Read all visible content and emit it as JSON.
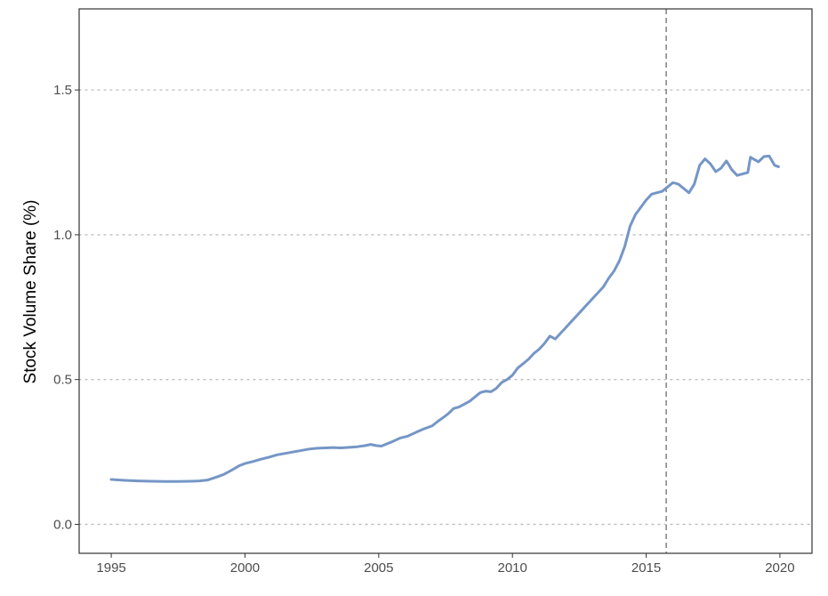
{
  "chart_data": {
    "type": "line",
    "title": "",
    "xlabel": "",
    "ylabel": "Stock Volume Share (%)",
    "xlim": [
      1993.8,
      2021.2
    ],
    "ylim": [
      -0.1,
      1.78
    ],
    "x_ticks": [
      1995,
      2000,
      2005,
      2010,
      2015,
      2020
    ],
    "x_tick_labels": [
      "1995",
      "2000",
      "2005",
      "2010",
      "2015",
      "2020"
    ],
    "y_ticks": [
      0.0,
      0.5,
      1.0,
      1.5
    ],
    "y_tick_labels": [
      "0.0",
      "0.5",
      "1.0",
      "1.5"
    ],
    "grid": "horizontal-dotted",
    "legend": "none",
    "reference_lines": [
      {
        "axis": "x",
        "value": 2015.75,
        "style": "dashed",
        "color": "#7f7f7f"
      }
    ],
    "series": [
      {
        "color": "#7596c6",
        "x": [
          1995.0,
          1995.5,
          1996.0,
          1996.5,
          1997.0,
          1997.5,
          1998.0,
          1998.3,
          1998.6,
          1998.9,
          1999.2,
          1999.5,
          1999.8,
          2000.0,
          2000.3,
          2000.6,
          2000.9,
          2001.2,
          2001.5,
          2001.8,
          2002.1,
          2002.4,
          2002.7,
          2003.0,
          2003.3,
          2003.6,
          2003.9,
          2004.2,
          2004.5,
          2004.7,
          2004.9,
          2005.1,
          2005.3,
          2005.5,
          2005.8,
          2006.1,
          2006.4,
          2006.7,
          2007.0,
          2007.2,
          2007.4,
          2007.6,
          2007.8,
          2008.0,
          2008.2,
          2008.4,
          2008.6,
          2008.8,
          2009.0,
          2009.2,
          2009.4,
          2009.6,
          2009.8,
          2010.0,
          2010.2,
          2010.4,
          2010.6,
          2010.8,
          2011.0,
          2011.2,
          2011.4,
          2011.6,
          2011.8,
          2012.0,
          2012.2,
          2012.4,
          2012.6,
          2012.8,
          2013.0,
          2013.2,
          2013.4,
          2013.6,
          2013.8,
          2014.0,
          2014.2,
          2014.4,
          2014.6,
          2014.8,
          2015.0,
          2015.2,
          2015.4,
          2015.6,
          2015.8,
          2016.0,
          2016.2,
          2016.4,
          2016.6,
          2016.8,
          2017.0,
          2017.2,
          2017.4,
          2017.6,
          2017.8,
          2018.0,
          2018.2,
          2018.4,
          2018.6,
          2018.8,
          2018.9,
          2019.0,
          2019.2,
          2019.4,
          2019.6,
          2019.8,
          2019.95
        ],
        "y": [
          0.155,
          0.152,
          0.15,
          0.149,
          0.148,
          0.148,
          0.149,
          0.15,
          0.153,
          0.162,
          0.172,
          0.187,
          0.203,
          0.21,
          0.217,
          0.225,
          0.232,
          0.24,
          0.245,
          0.25,
          0.255,
          0.26,
          0.263,
          0.264,
          0.265,
          0.264,
          0.266,
          0.268,
          0.272,
          0.276,
          0.272,
          0.27,
          0.278,
          0.285,
          0.298,
          0.305,
          0.318,
          0.33,
          0.34,
          0.355,
          0.368,
          0.382,
          0.4,
          0.405,
          0.415,
          0.425,
          0.44,
          0.455,
          0.46,
          0.458,
          0.47,
          0.49,
          0.5,
          0.515,
          0.54,
          0.555,
          0.57,
          0.59,
          0.605,
          0.625,
          0.65,
          0.64,
          0.66,
          0.68,
          0.7,
          0.72,
          0.74,
          0.76,
          0.78,
          0.8,
          0.82,
          0.85,
          0.875,
          0.91,
          0.96,
          1.03,
          1.07,
          1.095,
          1.12,
          1.14,
          1.145,
          1.15,
          1.165,
          1.18,
          1.175,
          1.16,
          1.145,
          1.175,
          1.24,
          1.262,
          1.245,
          1.218,
          1.23,
          1.255,
          1.225,
          1.205,
          1.21,
          1.215,
          1.268,
          1.262,
          1.252,
          1.27,
          1.272,
          1.24,
          1.235
        ]
      }
    ]
  }
}
